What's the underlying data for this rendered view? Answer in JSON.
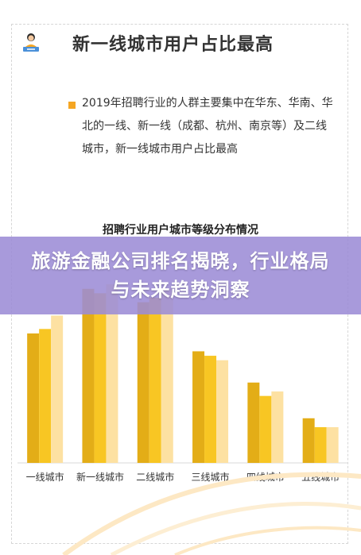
{
  "header": {
    "title": "新一线城市用户占比最高",
    "avatar_icon": "person-at-laptop-icon"
  },
  "bullet": {
    "text": "2019年招聘行业的人群主要集中在华东、华南、华北的一线、新一线（成都、杭州、南京等）及二线城市，新一线城市用户占比最高"
  },
  "banner": {
    "text": "旅游金融公司排名揭晓，行业格局与未来趋势洞察"
  },
  "colors": {
    "accent": "#f5a623",
    "bar_dark": "#e3ad17",
    "bar_mid": "#f8c623",
    "bar_light": "#fde1a2",
    "banner": "#9c8cd6"
  },
  "chart_data": {
    "type": "bar",
    "title": "招聘行业用户城市等级分布情况",
    "categories": [
      "一线城市",
      "新一线城市",
      "二线城市",
      "三线城市",
      "四线城市",
      "五线城市"
    ],
    "series": [
      {
        "values": [
          29,
          39,
          36,
          25,
          18,
          10
        ]
      },
      {
        "values": [
          30,
          38,
          37,
          24,
          15,
          8
        ]
      },
      {
        "values": [
          33,
          40,
          39,
          23,
          16,
          8
        ]
      }
    ],
    "ylim": [
      0,
      45
    ],
    "grid": false,
    "legend": "none"
  }
}
